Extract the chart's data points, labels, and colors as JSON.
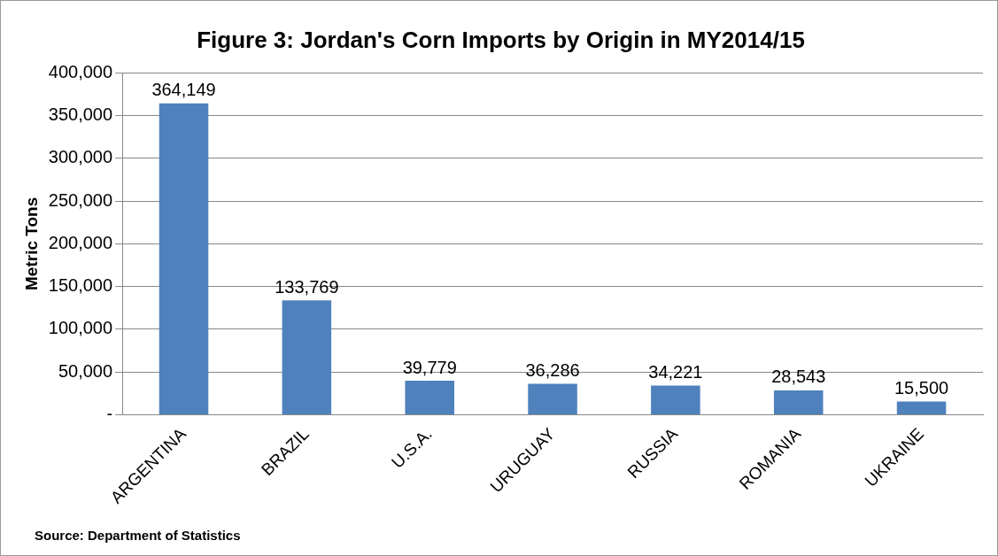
{
  "chart_data": {
    "type": "bar",
    "title": "Figure 3: Jordan's Corn Imports by Origin in MY2014/15",
    "ylabel": "Metric Tons",
    "categories": [
      "ARGENTINA",
      "BRAZIL",
      "U.S.A.",
      "URUGUAY",
      "RUSSIA",
      "ROMANIA",
      "UKRAINE"
    ],
    "values": [
      364149,
      133769,
      39779,
      36286,
      34221,
      28543,
      15500
    ],
    "color": "#4f81bd",
    "ylim": [
      0,
      400000
    ],
    "yticks": [
      {
        "value": 0,
        "label": "-"
      },
      {
        "value": 50000,
        "label": "50,000"
      },
      {
        "value": 100000,
        "label": "100,000"
      },
      {
        "value": 150000,
        "label": "150,000"
      },
      {
        "value": 200000,
        "label": "200,000"
      },
      {
        "value": 250000,
        "label": "250,000"
      },
      {
        "value": 300000,
        "label": "300,000"
      },
      {
        "value": 350000,
        "label": "350,000"
      },
      {
        "value": 400000,
        "label": "400,000"
      }
    ],
    "grid": "y",
    "value_labels": [
      "364,149",
      "133,769",
      "39,779",
      "36,286",
      "34,221",
      "28,543",
      "15,500"
    ],
    "annotations": [
      "Source: Department of Statistics"
    ]
  }
}
